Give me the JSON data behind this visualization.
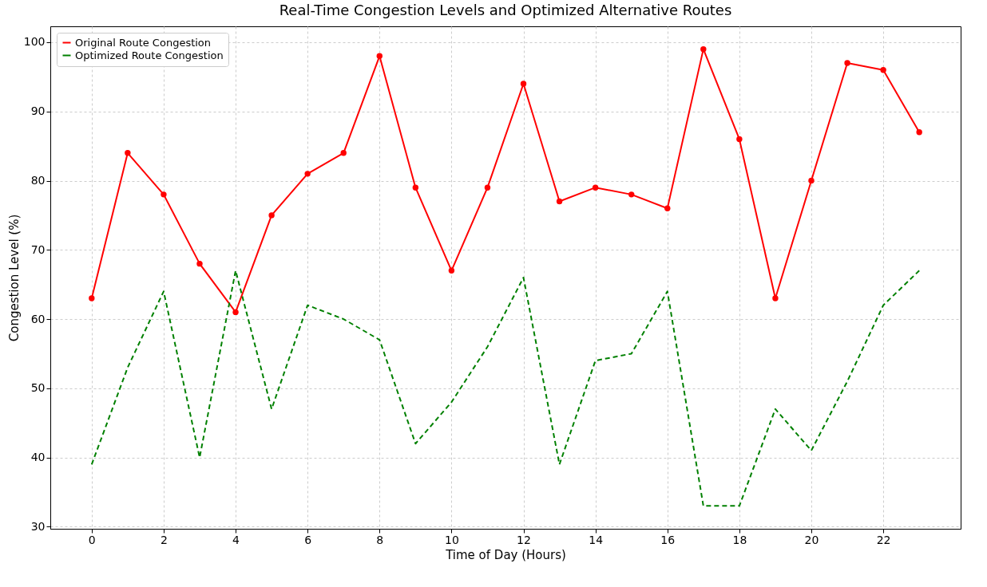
{
  "chart_data": {
    "type": "line",
    "title": "Real-Time Congestion Levels and Optimized Alternative Routes",
    "xlabel": "Time of Day (Hours)",
    "ylabel": "Congestion Level (%)",
    "x": [
      0,
      1,
      2,
      3,
      4,
      5,
      6,
      7,
      8,
      9,
      10,
      11,
      12,
      13,
      14,
      15,
      16,
      17,
      18,
      19,
      20,
      21,
      22,
      23
    ],
    "series": [
      {
        "name": "Original Route Congestion",
        "color": "#ff0000",
        "marker": "circle",
        "line_style": "solid",
        "values": [
          63,
          84,
          78,
          68,
          61,
          75,
          81,
          84,
          98,
          79,
          67,
          79,
          94,
          77,
          79,
          78,
          76,
          99,
          86,
          63,
          80,
          97,
          96,
          87
        ]
      },
      {
        "name": "Optimized Route Congestion",
        "color": "#008000",
        "marker": "none",
        "line_style": "dashed",
        "values": [
          39,
          53,
          64,
          40,
          67,
          47,
          62,
          60,
          57,
          42,
          48,
          56,
          66,
          39,
          54,
          55,
          64,
          33,
          33,
          47,
          41,
          51,
          62,
          67
        ]
      }
    ],
    "xlim": [
      -1.15,
      24.15
    ],
    "ylim": [
      29.7,
      102.3
    ],
    "xticks": [
      0,
      2,
      4,
      6,
      8,
      10,
      12,
      14,
      16,
      18,
      20,
      22
    ],
    "yticks": [
      30,
      40,
      50,
      60,
      70,
      80,
      90,
      100
    ],
    "grid": true,
    "legend": "top left"
  }
}
